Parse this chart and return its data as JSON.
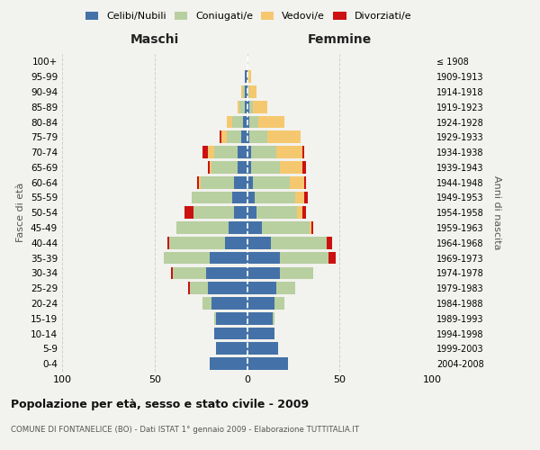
{
  "age_groups": [
    "0-4",
    "5-9",
    "10-14",
    "15-19",
    "20-24",
    "25-29",
    "30-34",
    "35-39",
    "40-44",
    "45-49",
    "50-54",
    "55-59",
    "60-64",
    "65-69",
    "70-74",
    "75-79",
    "80-84",
    "85-89",
    "90-94",
    "95-99",
    "100+"
  ],
  "birth_years": [
    "2004-2008",
    "1999-2003",
    "1994-1998",
    "1989-1993",
    "1984-1988",
    "1979-1983",
    "1974-1978",
    "1969-1973",
    "1964-1968",
    "1959-1963",
    "1954-1958",
    "1949-1953",
    "1944-1948",
    "1939-1943",
    "1934-1938",
    "1929-1933",
    "1924-1928",
    "1919-1923",
    "1914-1918",
    "1909-1913",
    "≤ 1908"
  ],
  "males": {
    "celibi": [
      20,
      17,
      18,
      17,
      19,
      21,
      22,
      20,
      12,
      10,
      7,
      8,
      7,
      5,
      5,
      3,
      2,
      1,
      1,
      1,
      0
    ],
    "coniugati": [
      0,
      0,
      0,
      1,
      5,
      10,
      18,
      25,
      30,
      28,
      22,
      22,
      18,
      14,
      13,
      8,
      6,
      3,
      1,
      0,
      0
    ],
    "vedovi": [
      0,
      0,
      0,
      0,
      0,
      0,
      0,
      0,
      0,
      0,
      0,
      0,
      1,
      1,
      3,
      3,
      3,
      1,
      1,
      0,
      0
    ],
    "divorziati": [
      0,
      0,
      0,
      0,
      0,
      1,
      1,
      0,
      1,
      0,
      5,
      0,
      1,
      1,
      3,
      1,
      0,
      0,
      0,
      0,
      0
    ]
  },
  "females": {
    "nubili": [
      22,
      17,
      15,
      14,
      15,
      16,
      18,
      18,
      13,
      8,
      5,
      4,
      3,
      2,
      2,
      1,
      1,
      1,
      0,
      0,
      0
    ],
    "coniugate": [
      0,
      0,
      0,
      1,
      5,
      10,
      18,
      26,
      30,
      26,
      22,
      22,
      20,
      16,
      14,
      10,
      5,
      2,
      1,
      0,
      0
    ],
    "vedove": [
      0,
      0,
      0,
      0,
      0,
      0,
      0,
      0,
      0,
      1,
      3,
      5,
      8,
      12,
      14,
      18,
      14,
      8,
      4,
      2,
      0
    ],
    "divorziate": [
      0,
      0,
      0,
      0,
      0,
      0,
      0,
      4,
      3,
      1,
      2,
      2,
      1,
      2,
      1,
      0,
      0,
      0,
      0,
      0,
      0
    ]
  },
  "colors": {
    "celibi": "#4472a8",
    "coniugati": "#b8cfa0",
    "vedovi": "#f5c870",
    "divorziati": "#cc1111"
  },
  "xlim": 100,
  "title": "Popolazione per età, sesso e stato civile - 2009",
  "subtitle": "COMUNE DI FONTANELICE (BO) - Dati ISTAT 1° gennaio 2009 - Elaborazione TUTTITALIA.IT",
  "ylabel_left": "Fasce di età",
  "ylabel_right": "Anni di nascita",
  "xlabel_left": "Maschi",
  "xlabel_right": "Femmine",
  "bg_color": "#f2f2ee",
  "grid_color": "#cccccc"
}
